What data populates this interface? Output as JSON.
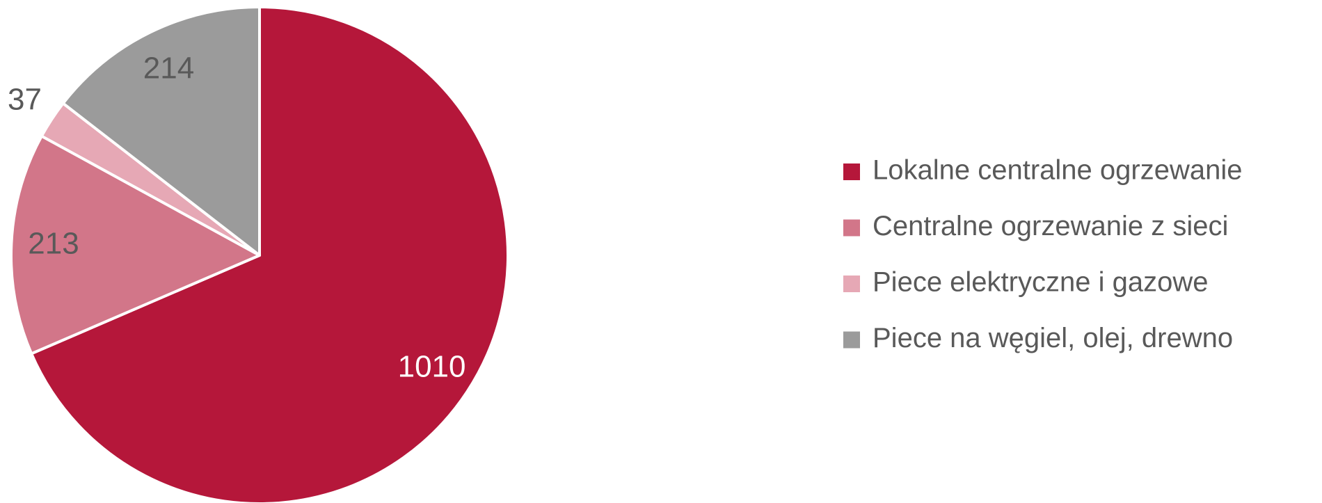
{
  "chart_data": {
    "type": "pie",
    "categories": [
      "Lokalne centralne ogrzewanie",
      "Centralne ogrzewanie z sieci",
      "Piece elektryczne i gazowe",
      "Piece na węgiel, olej, drewno"
    ],
    "values": [
      1010,
      213,
      37,
      214
    ],
    "colors": [
      "#b5173a",
      "#d27689",
      "#e6a8b5",
      "#9b9b9b"
    ],
    "legend": "right"
  }
}
